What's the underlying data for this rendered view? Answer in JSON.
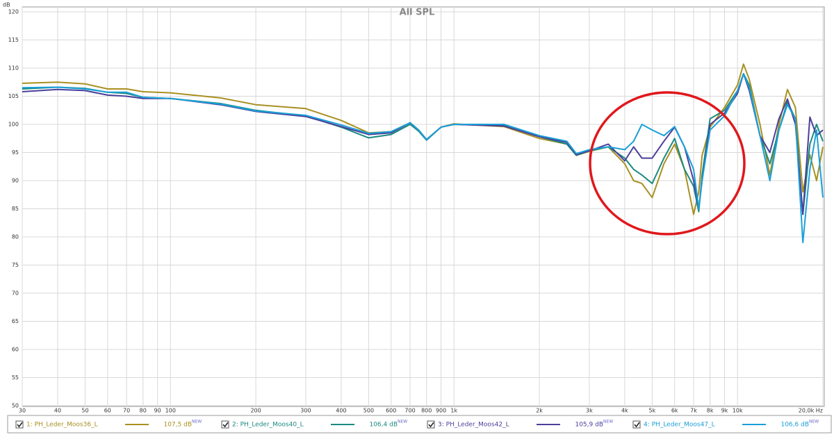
{
  "chart_data": {
    "type": "line",
    "title": "All SPL",
    "ylabel": "dB",
    "log_x": true,
    "grid": true,
    "x": [
      30,
      40,
      50,
      60,
      70,
      80,
      100,
      150,
      200,
      300,
      400,
      500,
      600,
      700,
      750,
      800,
      900,
      1000,
      1500,
      2000,
      2500,
      2700,
      3000,
      3500,
      4000,
      4300,
      4600,
      5000,
      5500,
      6000,
      6500,
      7000,
      7300,
      7500,
      8000,
      9000,
      10000,
      10500,
      11000,
      12000,
      13000,
      14000,
      15000,
      16000,
      17000,
      18000,
      19000,
      20000
    ],
    "xlim": [
      30,
      20000
    ],
    "xticks": [
      30,
      40,
      50,
      60,
      70,
      80,
      90,
      100,
      200,
      300,
      400,
      500,
      600,
      700,
      800,
      900,
      {
        "value": 1000,
        "label": "1k"
      },
      {
        "value": 2000,
        "label": "2k"
      },
      {
        "value": 3000,
        "label": "3k"
      },
      {
        "value": 4000,
        "label": "4k"
      },
      {
        "value": 5000,
        "label": "5k"
      },
      {
        "value": 6000,
        "label": "6k"
      },
      {
        "value": 7000,
        "label": "7k"
      },
      {
        "value": 8000,
        "label": "8k"
      },
      {
        "value": 9000,
        "label": "9k"
      },
      {
        "value": 10000,
        "label": "10k"
      },
      {
        "value": 20000,
        "label": "20,0k Hz"
      }
    ],
    "ylim": [
      50,
      120
    ],
    "yticks": [
      50,
      55,
      60,
      65,
      70,
      75,
      80,
      85,
      90,
      95,
      100,
      105,
      110,
      115,
      120
    ],
    "series": [
      {
        "name": "1: PH_Leder_Moos36_L",
        "color": "#a89020",
        "level": "107,5 dB",
        "badge": "NEW",
        "values": [
          107.3,
          107.5,
          107.2,
          106.3,
          106.3,
          105.8,
          105.6,
          104.7,
          103.5,
          102.8,
          100.7,
          98.5,
          98.7,
          100.3,
          99,
          97.3,
          99.5,
          100.1,
          99.6,
          97.5,
          96.5,
          94.5,
          95.2,
          96,
          93,
          90,
          89.5,
          87,
          93,
          96.5,
          92,
          84,
          88,
          94.5,
          99.5,
          103,
          107,
          110.7,
          108,
          100,
          91,
          100,
          106.2,
          103,
          88,
          94.6,
          90,
          96
        ]
      },
      {
        "name": "2: PH_Leder_Moos40_L",
        "color": "#1a8a80",
        "level": "106,4 dB",
        "badge": "NEW",
        "values": [
          106.3,
          106.6,
          106.4,
          105.7,
          105.5,
          104.8,
          104.6,
          103.7,
          102.5,
          101.5,
          99.5,
          97.6,
          98.2,
          100,
          98.8,
          97.2,
          99.5,
          100,
          99.8,
          97.8,
          96.5,
          94.5,
          95.3,
          96,
          94,
          92,
          91,
          89.5,
          94,
          97.5,
          92,
          89,
          84.5,
          91,
          101,
          102.5,
          106,
          109,
          107,
          98,
          93,
          99,
          104,
          101,
          84,
          96.5,
          100,
          97
        ]
      },
      {
        "name": "3: PH_Leder_Moos42_L",
        "color": "#4a3f9a",
        "level": "105,9 dB",
        "badge": "NEW",
        "values": [
          105.8,
          106.2,
          106,
          105.2,
          105,
          104.6,
          104.6,
          103.5,
          102.3,
          101.4,
          99.6,
          98.2,
          98.5,
          100.3,
          99,
          97.3,
          99.5,
          100,
          99.7,
          97.8,
          96.8,
          94.6,
          95.3,
          96.5,
          93.5,
          96,
          94,
          94,
          97,
          99.5,
          96,
          90,
          85,
          90,
          100,
          102,
          105.5,
          109,
          106,
          98,
          95,
          101,
          104.5,
          100,
          84,
          101.3,
          98,
          99
        ]
      },
      {
        "name": "4: PH_Leder_Moos47_L",
        "color": "#1aa0d8",
        "level": "106,6 dB",
        "badge": "NEW",
        "values": [
          106.5,
          106.6,
          106.3,
          105.7,
          105.7,
          104.8,
          104.6,
          103.6,
          102.4,
          101.6,
          99.9,
          98.4,
          98.7,
          100.3,
          99,
          97.3,
          99.5,
          100,
          100,
          98,
          97,
          94.8,
          95.5,
          96,
          95.5,
          97,
          100,
          99,
          98,
          99.6,
          96,
          92,
          85,
          90,
          99,
          101.5,
          106,
          109,
          106.5,
          98,
          90,
          99,
          103.5,
          101,
          79,
          92,
          99,
          87
        ]
      }
    ]
  }
}
